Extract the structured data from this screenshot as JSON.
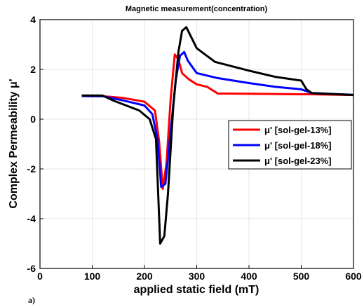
{
  "panel_label": "a)",
  "chart_data": {
    "type": "line",
    "title": "Magnetic measurement(concentration)",
    "xlabel": "applied static field (mT)",
    "ylabel": "Complex Permeability   μ'",
    "xlim": [
      0,
      600
    ],
    "ylim": [
      -6,
      4
    ],
    "xticks": [
      0,
      100,
      200,
      300,
      400,
      500,
      600
    ],
    "yticks": [
      -6,
      -4,
      -2,
      0,
      2,
      4
    ],
    "xtick_labels": [
      "0",
      "100",
      "200",
      "300",
      "400",
      "500",
      "600"
    ],
    "ytick_labels": [
      "-6",
      "-4",
      "-2",
      "0",
      "2",
      "4"
    ],
    "grid": true,
    "legend_position": "right",
    "series": [
      {
        "name": "μ' [sol-gel-13%]",
        "color": "#ff0000",
        "x": [
          80,
          120,
          160,
          200,
          220,
          228,
          235,
          242,
          250,
          258,
          265,
          272,
          285,
          300,
          320,
          340,
          400,
          450,
          500,
          520,
          600
        ],
        "y": [
          0.93,
          0.92,
          0.85,
          0.7,
          0.35,
          -0.9,
          -2.8,
          -1.8,
          0.8,
          2.6,
          2.4,
          1.85,
          1.6,
          1.4,
          1.3,
          1.03,
          1.02,
          1.01,
          1.0,
          1.0,
          0.97
        ]
      },
      {
        "name": "μ' [sol-gel-18%]",
        "color": "#0000ff",
        "x": [
          80,
          120,
          160,
          200,
          215,
          225,
          232,
          240,
          250,
          260,
          268,
          276,
          283,
          300,
          340,
          400,
          450,
          500,
          520,
          600
        ],
        "y": [
          0.93,
          0.92,
          0.75,
          0.55,
          0.2,
          -0.8,
          -2.72,
          -2.6,
          -0.5,
          1.6,
          2.55,
          2.7,
          2.35,
          1.85,
          1.65,
          1.45,
          1.3,
          1.2,
          1.05,
          0.98
        ]
      },
      {
        "name": "μ' [sol-gel-23%]",
        "color": "#000000",
        "x": [
          80,
          120,
          140,
          190,
          210,
          222,
          230,
          238,
          245,
          255,
          265,
          272,
          280,
          300,
          335,
          400,
          450,
          500,
          510,
          520,
          600
        ],
        "y": [
          0.95,
          0.95,
          0.75,
          0.35,
          0.0,
          -0.8,
          -5.0,
          -4.7,
          -3.0,
          0.5,
          2.7,
          3.55,
          3.7,
          2.85,
          2.3,
          1.95,
          1.7,
          1.55,
          1.2,
          1.05,
          0.97
        ]
      }
    ]
  }
}
